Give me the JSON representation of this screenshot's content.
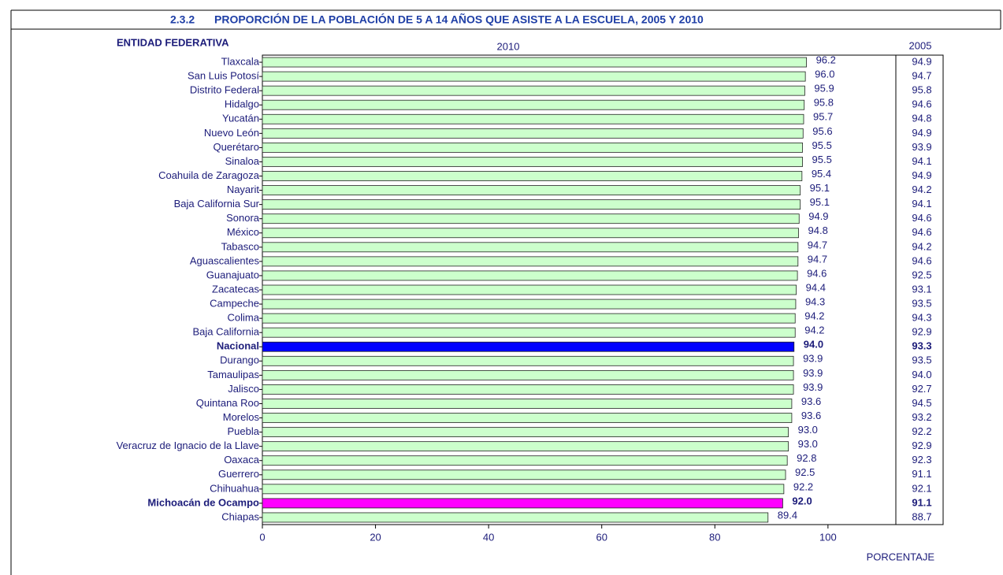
{
  "chart_data": {
    "type": "bar",
    "orientation": "horizontal",
    "section": "2.3.2",
    "title": "PROPORCIÓN DE LA POBLACIÓN DE 5 A 14 AÑOS QUE ASISTE A LA ESCUELA, 2005 Y 2010",
    "category_header": "ENTIDAD FEDERATIVA",
    "x_label": "PORCENTAJE",
    "categories": [
      "Tlaxcala",
      "San Luis Potosí",
      "Distrito Federal",
      "Hidalgo",
      "Yucatán",
      "Nuevo León",
      "Querétaro",
      "Sinaloa",
      "Coahuila de Zaragoza",
      "Nayarit",
      "Baja California Sur",
      "Sonora",
      "México",
      "Tabasco",
      "Aguascalientes",
      "Guanajuato",
      "Zacatecas",
      "Campeche",
      "Colima",
      "Baja California",
      "Nacional",
      "Durango",
      "Tamaulipas",
      "Jalisco",
      "Quintana Roo",
      "Morelos",
      "Puebla",
      "Veracruz de Ignacio de la Llave",
      "Oaxaca",
      "Guerrero",
      "Chihuahua",
      "Michoacán de Ocampo",
      "Chiapas"
    ],
    "series": [
      {
        "name": "2010",
        "color": "#ccffcc",
        "values": [
          96.2,
          96.0,
          95.9,
          95.8,
          95.7,
          95.6,
          95.5,
          95.5,
          95.4,
          95.1,
          95.1,
          94.9,
          94.8,
          94.7,
          94.7,
          94.6,
          94.4,
          94.3,
          94.2,
          94.2,
          94.0,
          93.9,
          93.9,
          93.9,
          93.6,
          93.6,
          93.0,
          93.0,
          92.8,
          92.5,
          92.2,
          92.0,
          89.4
        ],
        "value_labels": [
          "96.2",
          "96.0",
          "95.9",
          "95.8",
          "95.7",
          "95.6",
          "95.5",
          "95.5",
          "95.4",
          "95.1",
          "95.1",
          "94.9",
          "94.8",
          "94.7",
          "94.7",
          "94.6",
          "94.4",
          "94.3",
          "94.2",
          "94.2",
          "94.0",
          "93.9",
          "93.9",
          "93.9",
          "93.6",
          "93.6",
          "93.0",
          "93.0",
          "92.8",
          "92.5",
          "92.2",
          "92.0",
          "89.4"
        ],
        "bar_colors": [
          "#ccffcc",
          "#ccffcc",
          "#ccffcc",
          "#ccffcc",
          "#ccffcc",
          "#ccffcc",
          "#ccffcc",
          "#ccffcc",
          "#ccffcc",
          "#ccffcc",
          "#ccffcc",
          "#ccffcc",
          "#ccffcc",
          "#ccffcc",
          "#ccffcc",
          "#ccffcc",
          "#ccffcc",
          "#ccffcc",
          "#ccffcc",
          "#ccffcc",
          "#0000ff",
          "#ccffcc",
          "#ccffcc",
          "#ccffcc",
          "#ccffcc",
          "#ccffcc",
          "#ccffcc",
          "#ccffcc",
          "#ccffcc",
          "#ccffcc",
          "#ccffcc",
          "#ff00ff",
          "#ccffcc"
        ]
      }
    ],
    "column_2005": {
      "name": "2005",
      "values": [
        94.9,
        94.7,
        95.8,
        94.6,
        94.8,
        94.9,
        93.9,
        94.1,
        94.9,
        94.2,
        94.1,
        94.6,
        94.6,
        94.2,
        94.6,
        92.5,
        93.1,
        93.5,
        94.3,
        92.9,
        93.3,
        93.5,
        94.0,
        92.7,
        94.5,
        93.2,
        92.2,
        92.9,
        92.3,
        91.1,
        92.1,
        91.1,
        88.7
      ],
      "value_labels": [
        "94.9",
        "94.7",
        "95.8",
        "94.6",
        "94.8",
        "94.9",
        "93.9",
        "94.1",
        "94.9",
        "94.2",
        "94.1",
        "94.6",
        "94.6",
        "94.2",
        "94.6",
        "92.5",
        "93.1",
        "93.5",
        "94.3",
        "92.9",
        "93.3",
        "93.5",
        "94.0",
        "92.7",
        "94.5",
        "93.2",
        "92.2",
        "92.9",
        "92.3",
        "91.1",
        "92.1",
        "91.1",
        "88.7"
      ]
    },
    "xlim": [
      0,
      112
    ],
    "xticks": [
      0,
      20,
      40,
      60,
      80,
      100
    ]
  }
}
